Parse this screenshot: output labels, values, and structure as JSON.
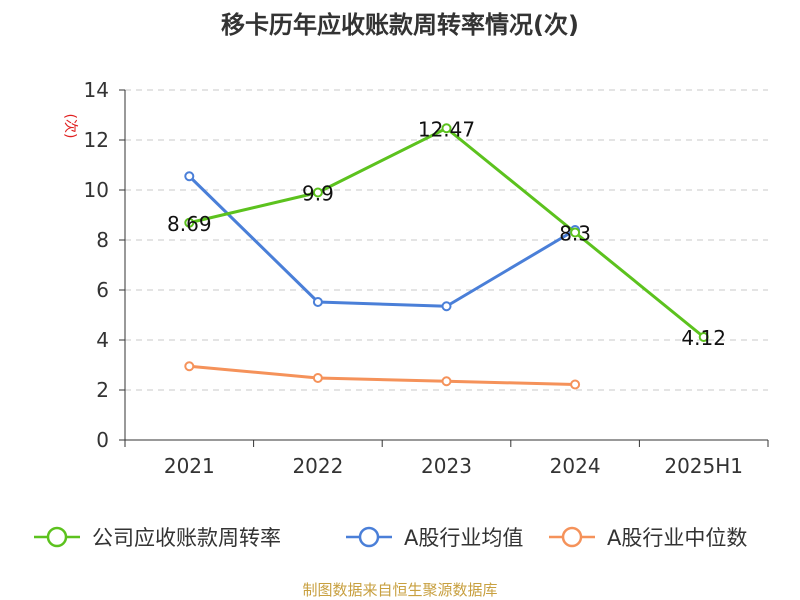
{
  "chart_data": {
    "type": "line",
    "title": "移卡历年应收账款周转率情况(次)",
    "ylabel": "(次)",
    "xlabel": "",
    "categories": [
      "2021",
      "2022",
      "2023",
      "2024",
      "2025H1"
    ],
    "ylim": [
      0,
      14
    ],
    "yticks": [
      0,
      2,
      4,
      6,
      8,
      10,
      12,
      14
    ],
    "grid": true,
    "legend_position": "bottom",
    "series": [
      {
        "name": "公司应收账款周转率",
        "color": "#5cc21e",
        "values": [
          8.69,
          9.9,
          12.47,
          8.3,
          4.12
        ],
        "labels": [
          "8.69",
          "9.9",
          "12.47",
          "8.3",
          "4.12"
        ]
      },
      {
        "name": "A股行业均值",
        "color": "#4a7fd8",
        "values": [
          10.55,
          5.52,
          5.35,
          8.4,
          null
        ]
      },
      {
        "name": "A股行业中位数",
        "color": "#f5925a",
        "values": [
          2.95,
          2.48,
          2.35,
          2.22,
          null
        ]
      }
    ],
    "source": "制图数据来自恒生聚源数据库"
  }
}
